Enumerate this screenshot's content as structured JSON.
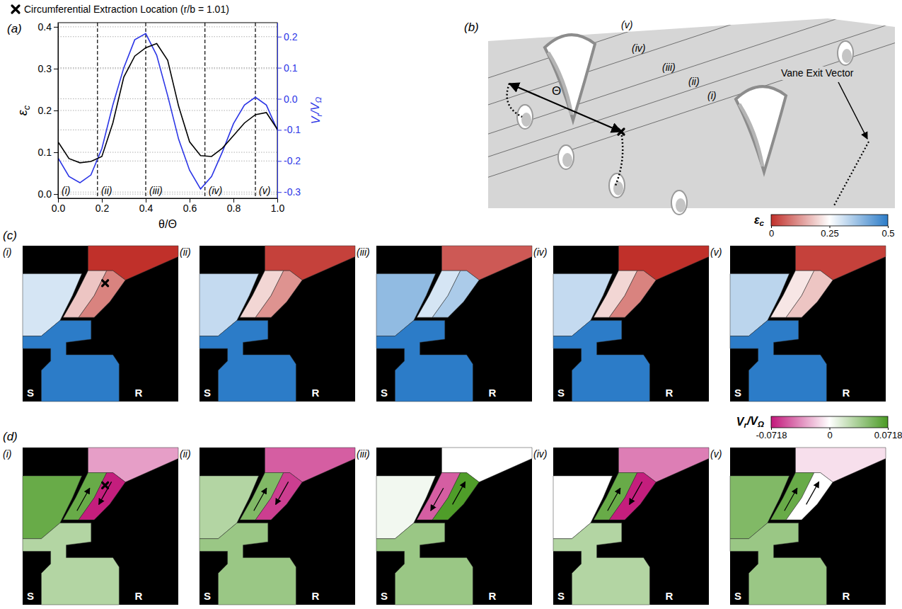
{
  "chart_data": {
    "type": "line",
    "xlabel": "θ/Θ",
    "ylabel": "εc",
    "y2label": "Vr/VΩ",
    "x": [
      0,
      0.05,
      0.1,
      0.15,
      0.2,
      0.25,
      0.3,
      0.35,
      0.4,
      0.45,
      0.5,
      0.55,
      0.6,
      0.65,
      0.7,
      0.75,
      0.8,
      0.85,
      0.9,
      0.95,
      1.0
    ],
    "series": [
      {
        "color": "#000000",
        "values": [
          0.125,
          0.085,
          0.075,
          0.078,
          0.09,
          0.17,
          0.28,
          0.33,
          0.35,
          0.36,
          0.32,
          0.21,
          0.125,
          0.092,
          0.09,
          0.11,
          0.14,
          0.17,
          0.19,
          0.195,
          0.155
        ]
      },
      {
        "color": "#2b35e6",
        "axis": "y2",
        "values": [
          -0.19,
          -0.25,
          -0.27,
          -0.245,
          -0.16,
          -0.02,
          0.1,
          0.19,
          0.21,
          0.14,
          0.01,
          -0.13,
          -0.23,
          -0.29,
          -0.25,
          -0.17,
          -0.08,
          -0.02,
          0.005,
          -0.02,
          -0.1
        ]
      }
    ],
    "xlim": [
      0,
      1
    ],
    "xticks": [
      {
        "value": 0,
        "label": "0.0"
      },
      0.2,
      0.4,
      0.6,
      0.8,
      {
        "value": 1,
        "label": "1.0"
      }
    ],
    "ylim": [
      -0.01,
      0.41
    ],
    "yticks": [
      {
        "value": 0,
        "label": "0.0"
      },
      0.1,
      0.2,
      0.3,
      0.4
    ],
    "y2lim": [
      -0.32,
      0.245
    ],
    "y2ticks": [
      -0.3,
      -0.2,
      -0.1,
      {
        "value": 0,
        "label": "0.0"
      },
      0.1,
      0.2
    ],
    "grid": true,
    "vlines": [
      0.18,
      0.4,
      0.67,
      0.9
    ],
    "annotations": [
      {
        "text": "(i)",
        "x": 0.01
      },
      {
        "text": "(ii)",
        "x": 0.19
      },
      {
        "text": "(iii)",
        "x": 0.41
      },
      {
        "text": "(iv)",
        "x": 0.68
      },
      {
        "text": "(v)",
        "x": 0.91
      }
    ]
  },
  "figure": {
    "panel_labels": [
      "(a)",
      "(b)",
      "(c)",
      "(d)"
    ],
    "extraction_note": "Circumferential Extraction Location (r/b = 1.01)",
    "panel_b": {
      "station_labels": [
        "(v)",
        "(iv)",
        "(iii)",
        "(ii)",
        "(i)"
      ],
      "pitch_label": "Θ",
      "vane_exit_label": "Vane Exit Vector"
    },
    "field_panels": [
      {
        "colorbar": {
          "label": "εc",
          "range": [
            0,
            0.5
          ],
          "ticks": [
            0,
            0.25,
            0.5
          ]
        },
        "stator_label": "S",
        "rotor_label": "R",
        "subpanels": [
          {
            "label": "(i)",
            "fields": [
              0.0,
              0.18,
              0.1,
              0.3,
              0.5
            ]
          },
          {
            "label": "(ii)",
            "fields": [
              0.02,
              0.2,
              0.12,
              0.32,
              0.5
            ]
          },
          {
            "label": "(iii)",
            "fields": [
              0.05,
              0.3,
              0.35,
              0.38,
              0.5
            ]
          },
          {
            "label": "(iv)",
            "fields": [
              0.0,
              0.2,
              0.1,
              0.32,
              0.5
            ]
          },
          {
            "label": "(v)",
            "fields": [
              0.02,
              0.22,
              0.18,
              0.33,
              0.5
            ]
          }
        ]
      },
      {
        "colorbar": {
          "label": "Vr/VΩ",
          "range": [
            -0.0718,
            0.0718
          ],
          "ticks": [
            -0.0718,
            0,
            0.0718
          ]
        },
        "stator_label": "S",
        "rotor_label": "R",
        "subpanels": [
          {
            "label": "(i)",
            "fields": [
              -0.03,
              0.06,
              -0.07,
              0.06,
              0.03
            ]
          },
          {
            "label": "(ii)",
            "fields": [
              -0.05,
              0.05,
              -0.06,
              0.03,
              0.04
            ]
          },
          {
            "label": "(iii)",
            "fields": [
              0.0,
              -0.05,
              0.07,
              0.005,
              0.04
            ]
          },
          {
            "label": "(iv)",
            "fields": [
              -0.04,
              0.06,
              -0.07,
              0.0,
              0.03
            ]
          },
          {
            "label": "(v)",
            "fields": [
              -0.01,
              0.06,
              0.0,
              0.05,
              0.04
            ]
          }
        ]
      }
    ]
  }
}
